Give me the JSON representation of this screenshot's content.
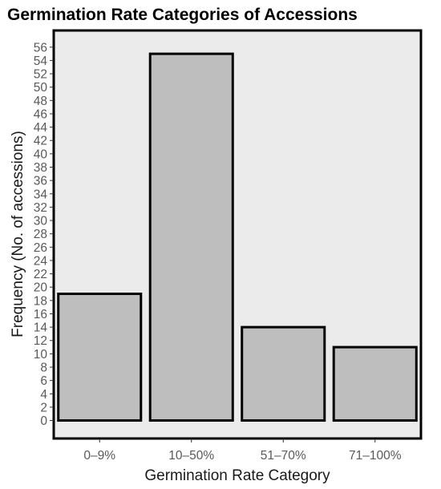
{
  "chart_data": {
    "type": "bar",
    "title": "Germination Rate Categories of Accessions",
    "xlabel": "Germination Rate Category",
    "ylabel": "Frequency (No. of accessions)",
    "categories": [
      "0–9%",
      "10–50%",
      "51–70%",
      "71–100%"
    ],
    "values": [
      19,
      55,
      14,
      11
    ],
    "ylim": [
      -2.7,
      58.5
    ],
    "yticks": [
      0,
      2,
      4,
      6,
      8,
      10,
      12,
      14,
      16,
      18,
      20,
      22,
      24,
      26,
      28,
      30,
      32,
      34,
      36,
      38,
      40,
      42,
      44,
      46,
      48,
      50,
      52,
      54,
      56
    ],
    "grid": false,
    "colors": {
      "panel_background": "#ebebeb",
      "bar_fill": "#bebebe",
      "bar_outline": "#000000"
    }
  }
}
